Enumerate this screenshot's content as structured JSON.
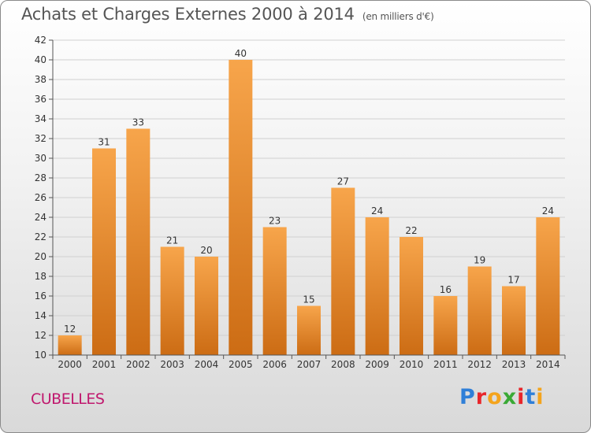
{
  "header": {
    "title": "Achats et Charges Externes 2000 à 2014",
    "subtitle": "(en milliers d'€)"
  },
  "footer": {
    "commune": "CUBELLES",
    "brand": "Proxiti"
  },
  "colors": {
    "bar_light": "#f7a54b",
    "bar_dark": "#cc6c14",
    "commune": "#c0186e",
    "grid": "#d0d0d0"
  },
  "chart_data": {
    "type": "bar",
    "title": "Achats et Charges Externes 2000 à 2014",
    "subtitle": "(en milliers d'€)",
    "xlabel": "",
    "ylabel": "",
    "categories": [
      "2000",
      "2001",
      "2002",
      "2003",
      "2004",
      "2005",
      "2006",
      "2007",
      "2008",
      "2009",
      "2010",
      "2011",
      "2012",
      "2013",
      "2014"
    ],
    "values": [
      12,
      31,
      33,
      21,
      20,
      40,
      23,
      15,
      27,
      24,
      22,
      16,
      19,
      17,
      24
    ],
    "ylim": [
      10,
      42
    ],
    "yticks": [
      10,
      12,
      14,
      16,
      18,
      20,
      22,
      24,
      26,
      28,
      30,
      32,
      34,
      36,
      38,
      40,
      42
    ],
    "grid": true,
    "data_labels": true
  }
}
